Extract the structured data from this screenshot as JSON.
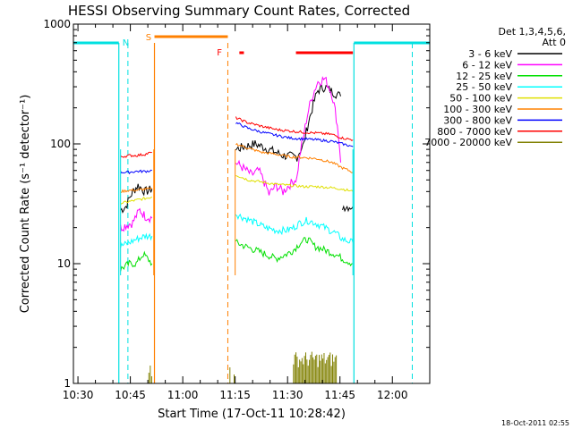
{
  "chart_data": {
    "type": "line",
    "title": "HESSI Observing Summary Count Rates, Corrected",
    "xlabel": "Start Time (17-Oct-11 10:28:42)",
    "ylabel": "Corrected Count Rate (s⁻¹ detector⁻¹)",
    "x_units": "minutes after 10:28:42 UT",
    "xlim": [
      0,
      102
    ],
    "ylim": [
      1,
      1000
    ],
    "yscale": "log",
    "x_ticks": [
      {
        "label": "10:30",
        "value": 1.3
      },
      {
        "label": "10:45",
        "value": 16.3
      },
      {
        "label": "11:00",
        "value": 31.3
      },
      {
        "label": "11:15",
        "value": 46.3
      },
      {
        "label": "11:30",
        "value": 61.3
      },
      {
        "label": "11:45",
        "value": 76.3
      },
      {
        "label": "12:00",
        "value": 91.3
      }
    ],
    "y_ticks": [
      {
        "label": "1",
        "value": 1
      },
      {
        "label": "10",
        "value": 10
      },
      {
        "label": "100",
        "value": 100
      },
      {
        "label": "1000",
        "value": 1000
      }
    ],
    "legend_title": "Det 1,3,4,5,6,",
    "legend_subtitle": "Att 0",
    "legend_position": "right",
    "flags": {
      "N": {
        "label": "N",
        "color": "#00e0e0"
      },
      "S": {
        "label": "S",
        "color": "#ff8000"
      },
      "F": {
        "label": "F",
        "color": "#ff0000"
      }
    },
    "series": [
      {
        "name": "3 - 6 keV",
        "color": "#000000",
        "segments": [
          {
            "x": [
              13.5,
              15,
              17,
              18.5,
              20.5,
              22.5
            ],
            "y": [
              28,
              30,
              40,
              45,
              40,
              42
            ]
          },
          {
            "x": [
              46.5,
              49,
              52,
              56,
              60,
              64,
              66,
              68,
              70,
              72,
              73.5,
              76.5
            ],
            "y": [
              90,
              95,
              100,
              90,
              80,
              78,
              100,
              180,
              280,
              300,
              280,
              250
            ]
          },
          {
            "x": [
              77,
              80
            ],
            "y": [
              30,
              30
            ]
          }
        ]
      },
      {
        "name": "6 - 12 keV",
        "color": "#ff00ff",
        "segments": [
          {
            "x": [
              13.5,
              15,
              17,
              19,
              20.5,
              22.5
            ],
            "y": [
              20,
              21,
              22,
              28,
              25,
              24
            ]
          },
          {
            "x": [
              46.5,
              48,
              51,
              53,
              56,
              58,
              60,
              64,
              66,
              68,
              70,
              72,
              74,
              76.5
            ],
            "y": [
              70,
              65,
              55,
              60,
              38,
              45,
              40,
              52,
              120,
              230,
              330,
              350,
              260,
              70
            ]
          }
        ]
      },
      {
        "name": "12 - 25 keV",
        "color": "#00e000",
        "segments": [
          {
            "x": [
              13.5,
              16,
              18,
              20,
              22.5
            ],
            "y": [
              9,
              10,
              10,
              12,
              10
            ]
          },
          {
            "x": [
              46.5,
              49,
              52,
              55,
              58,
              61,
              63,
              65,
              67,
              69,
              72,
              75,
              77,
              80
            ],
            "y": [
              15,
              14,
              13,
              12,
              11,
              12,
              13,
              15,
              16,
              14,
              13,
              12,
              11,
              10
            ]
          }
        ]
      },
      {
        "name": "25 - 50 keV",
        "color": "#00ffff",
        "segments": [
          {
            "x": [
              13.5,
              16,
              18,
              20.5,
              22.5
            ],
            "y": [
              14,
              15,
              16,
              17,
              17
            ]
          },
          {
            "x": [
              46.5,
              49,
              52,
              55,
              58,
              61,
              63,
              65,
              67,
              69,
              72,
              75,
              77,
              80
            ],
            "y": [
              26,
              24,
              22,
              20,
              19,
              19,
              20,
              22,
              23,
              22,
              20,
              18,
              16,
              15
            ]
          }
        ]
      },
      {
        "name": "50 - 100 keV",
        "color": "#e0e000",
        "segments": [
          {
            "x": [
              13.5,
              16,
              18,
              20.5,
              22.5
            ],
            "y": [
              32,
              33,
              34,
              35,
              36
            ]
          },
          {
            "x": [
              46.5,
              50,
              54,
              58,
              62,
              66,
              70,
              74,
              77,
              80
            ],
            "y": [
              55,
              50,
              48,
              46,
              45,
              44,
              44,
              43,
              42,
              40
            ]
          }
        ]
      },
      {
        "name": "100 - 300 keV",
        "color": "#ff8000",
        "segments": [
          {
            "x": [
              13.5,
              16,
              18,
              20.5,
              22.5
            ],
            "y": [
              40,
              41,
              41,
              42,
              42
            ]
          },
          {
            "x": [
              46.5,
              50,
              54,
              58,
              62,
              66,
              70,
              74,
              77,
              80
            ],
            "y": [
              100,
              92,
              85,
              82,
              78,
              77,
              75,
              70,
              63,
              58
            ]
          }
        ]
      },
      {
        "name": "300 - 800 keV",
        "color": "#0000ff",
        "segments": [
          {
            "x": [
              13.5,
              16,
              18,
              20.5,
              22.5
            ],
            "y": [
              58,
              58,
              59,
              59,
              60
            ]
          },
          {
            "x": [
              46.5,
              50,
              54,
              58,
              62,
              66,
              70,
              74,
              77,
              80
            ],
            "y": [
              150,
              135,
              125,
              118,
              112,
              110,
              108,
              105,
              100,
              95
            ]
          }
        ]
      },
      {
        "name": "800 - 7000 keV",
        "color": "#ff0000",
        "segments": [
          {
            "x": [
              13.5,
              16,
              18,
              20.5,
              22.5
            ],
            "y": [
              78,
              80,
              80,
              82,
              85
            ]
          },
          {
            "x": [
              46.5,
              50,
              54,
              58,
              62,
              66,
              70,
              74,
              77,
              80
            ],
            "y": [
              165,
              150,
              140,
              132,
              128,
              125,
              123,
              120,
              112,
              108
            ]
          }
        ]
      },
      {
        "name": "7000 - 20000 keV",
        "color": "#808000",
        "segments": [
          {
            "x": [
              46.5,
              80
            ],
            "y": [
              1,
              1
            ]
          }
        ]
      }
    ]
  },
  "footer": {
    "date_stamp": "18-Oct-2011 02:55"
  }
}
